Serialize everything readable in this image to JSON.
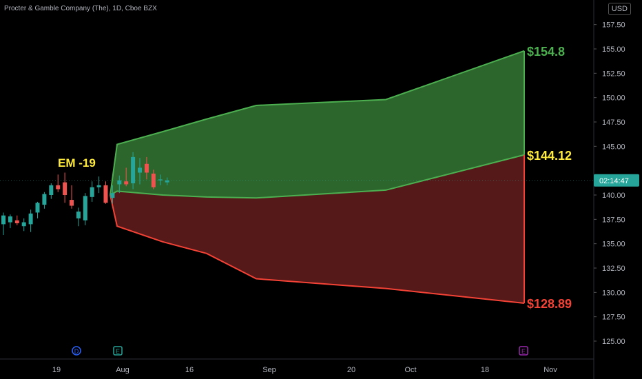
{
  "header": {
    "symbol_line": "Procter & Gamble Company (The), 1D, Cboe BZX"
  },
  "currency_button": {
    "label": "USD"
  },
  "chart_data": {
    "type": "candlestick",
    "ylim": [
      122.5,
      158.75
    ],
    "y_ticks": [
      "157.50",
      "155.00",
      "152.50",
      "150.00",
      "147.50",
      "145.00",
      "140.00",
      "137.50",
      "135.00",
      "132.50",
      "130.00",
      "127.50",
      "125.00"
    ],
    "x_ticks": [
      "19",
      "Aug",
      "16",
      "Sep",
      "20",
      "Oct",
      "18",
      "Nov"
    ],
    "price_tag": {
      "value": 141.5,
      "label": "02:14:47",
      "color": "#26a69a"
    },
    "annotation": {
      "text": "EM -19",
      "color": "#ffeb3b"
    },
    "candles": [
      {
        "o": 137.0,
        "h": 138.2,
        "l": 135.9,
        "c": 137.9,
        "up": true
      },
      {
        "o": 137.2,
        "h": 138.0,
        "l": 136.6,
        "c": 137.8,
        "up": true
      },
      {
        "o": 137.4,
        "h": 137.9,
        "l": 136.9,
        "c": 137.1,
        "up": false
      },
      {
        "o": 136.8,
        "h": 137.6,
        "l": 136.3,
        "c": 137.2,
        "up": true
      },
      {
        "o": 137.0,
        "h": 138.5,
        "l": 136.2,
        "c": 138.1,
        "up": true
      },
      {
        "o": 138.2,
        "h": 139.3,
        "l": 137.6,
        "c": 139.2,
        "up": true
      },
      {
        "o": 139.0,
        "h": 140.3,
        "l": 138.6,
        "c": 140.1,
        "up": true
      },
      {
        "o": 140.0,
        "h": 141.2,
        "l": 139.6,
        "c": 141.0,
        "up": true
      },
      {
        "o": 141.0,
        "h": 142.1,
        "l": 140.3,
        "c": 140.6,
        "up": false
      },
      {
        "o": 141.3,
        "h": 142.3,
        "l": 139.2,
        "c": 140.0,
        "up": false
      },
      {
        "o": 139.5,
        "h": 141.0,
        "l": 138.6,
        "c": 138.9,
        "up": false
      },
      {
        "o": 137.6,
        "h": 138.7,
        "l": 136.8,
        "c": 138.3,
        "up": true
      },
      {
        "o": 137.4,
        "h": 140.2,
        "l": 136.9,
        "c": 139.9,
        "up": true
      },
      {
        "o": 139.8,
        "h": 141.4,
        "l": 139.3,
        "c": 140.8,
        "up": true
      },
      {
        "o": 140.8,
        "h": 141.9,
        "l": 140.2,
        "c": 141.0,
        "up": true
      },
      {
        "o": 141.0,
        "h": 141.4,
        "l": 139.1,
        "c": 139.2,
        "up": false
      },
      {
        "o": 139.7,
        "h": 141.0,
        "l": 139.1,
        "c": 140.2,
        "up": true
      },
      {
        "o": 141.1,
        "h": 142.0,
        "l": 140.2,
        "c": 141.5,
        "up": true
      },
      {
        "o": 141.4,
        "h": 142.8,
        "l": 140.9,
        "c": 141.1,
        "up": false
      },
      {
        "o": 141.2,
        "h": 144.4,
        "l": 140.6,
        "c": 143.9,
        "up": true
      },
      {
        "o": 142.3,
        "h": 143.8,
        "l": 141.1,
        "c": 142.8,
        "up": true
      },
      {
        "o": 143.2,
        "h": 143.9,
        "l": 141.6,
        "c": 142.3,
        "up": false
      },
      {
        "o": 142.2,
        "h": 142.6,
        "l": 140.6,
        "c": 140.8,
        "up": false
      },
      {
        "o": 141.5,
        "h": 142.1,
        "l": 141.0,
        "c": 141.6,
        "up": true
      },
      {
        "o": 141.3,
        "h": 141.8,
        "l": 141.0,
        "c": 141.5,
        "up": true
      }
    ],
    "range_upper": [
      140.0,
      145.2,
      146.5,
      147.8,
      149.2,
      149.8,
      154.8
    ],
    "range_mid": [
      140.0,
      140.4,
      140.0,
      139.8,
      139.7,
      140.5,
      144.12
    ],
    "range_lower": [
      140.0,
      136.8,
      135.2,
      134.0,
      131.4,
      130.4,
      128.89
    ],
    "range_labels": [
      {
        "text": "$154.8",
        "value": 154.8,
        "color": "#4caf50"
      },
      {
        "text": "$144.12",
        "value": 144.12,
        "color": "#ffeb3b"
      },
      {
        "text": "$128.89",
        "value": 128.89,
        "color": "#f44336"
      }
    ],
    "event_markers": [
      {
        "letter": "D",
        "color": "#2962ff"
      },
      {
        "letter": "E",
        "color": "#26a69a"
      },
      {
        "letter": "E",
        "color": "#9c27b0"
      }
    ]
  }
}
